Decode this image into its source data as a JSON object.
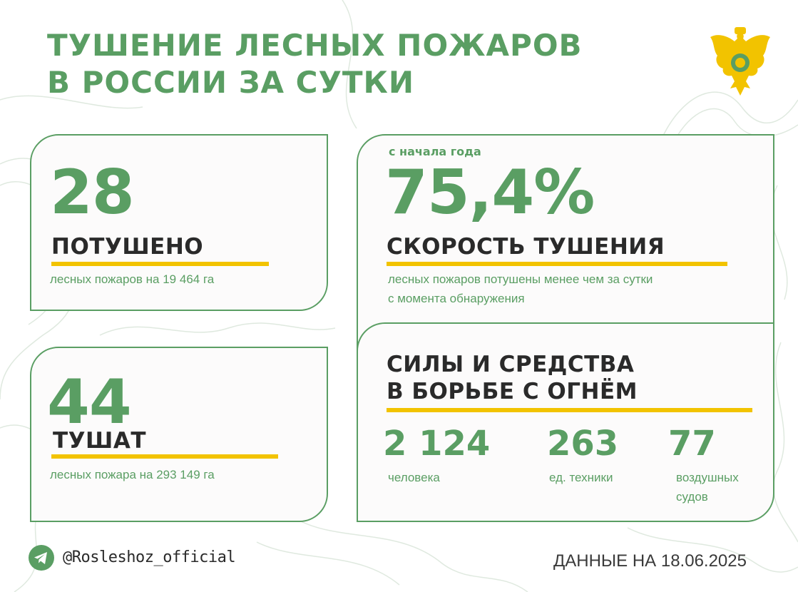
{
  "title": {
    "line1": "ТУШЕНИЕ ЛЕСНЫХ ПОЖАРОВ",
    "line2": "В РОССИИ ЗА СУТКИ"
  },
  "emblem": {
    "icon": "double-headed-eagle-icon",
    "color": "#f2c300"
  },
  "extinguished": {
    "value": "28",
    "label": "ПОТУШЕНО",
    "description": "лесных пожаров на 19 464 га"
  },
  "active": {
    "value": "44",
    "label": "ТУШАТ",
    "description": "лесных пожара на 293 149 га"
  },
  "speed": {
    "caption": "с начала года",
    "value": "75,4%",
    "label": "СКОРОСТЬ ТУШЕНИЯ",
    "description_line1": "лесных пожаров потушены менее чем за сутки",
    "description_line2": "с момента обнаружения"
  },
  "forces": {
    "heading_line1": "СИЛЫ И СРЕДСТВА",
    "heading_line2": "В БОРЬБЕ С ОГНЁМ",
    "people_value": "2 124",
    "people_label": "человека",
    "equipment_value": "263",
    "equipment_label": "ед. техники",
    "aircraft_value": "77",
    "aircraft_label_line1": "воздушных",
    "aircraft_label_line2": "судов"
  },
  "footer": {
    "telegram_icon": "telegram-icon",
    "handle": "@Rosleshoz_official",
    "date": "ДАННЫЕ НА 18.06.2025"
  },
  "colors": {
    "green": "#5a9e63",
    "yellow": "#f2c300",
    "dark": "#2a2a2a"
  }
}
